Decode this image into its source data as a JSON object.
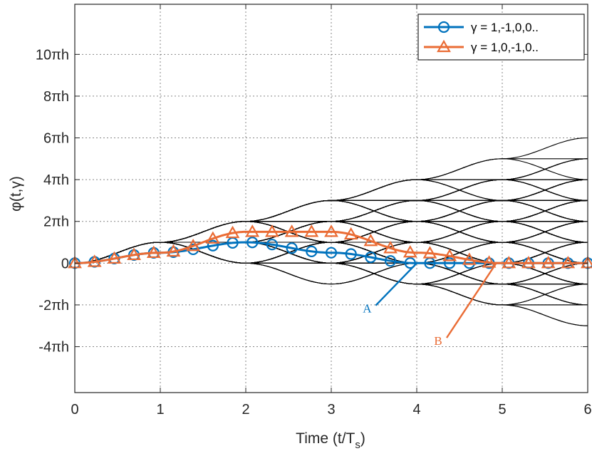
{
  "chart_data": {
    "type": "line",
    "xlabel": "Time (t/T",
    "xlabel_sub": "s",
    "xlabel_end": ")",
    "ylabel": "φ(t,γ)",
    "xlim": [
      0,
      6
    ],
    "ylim": [
      -6.2,
      12.4
    ],
    "grid": true,
    "x_ticks": [
      "0",
      "1",
      "2",
      "3",
      "4",
      "5",
      "6"
    ],
    "y_ticks": [
      {
        "value": 10,
        "label": "10πh"
      },
      {
        "value": 8,
        "label": "8πh"
      },
      {
        "value": 6,
        "label": "6πh"
      },
      {
        "value": 4,
        "label": "4πh"
      },
      {
        "value": 2,
        "label": "2πh"
      },
      {
        "value": 0,
        "label": "0"
      },
      {
        "value": -2,
        "label": "-2πh"
      },
      {
        "value": -4,
        "label": "-4πh"
      }
    ],
    "legend_position": "top-right",
    "phase_tree": {
      "color": "#000000",
      "slope_per_symbol": 1,
      "start_symbol": 2,
      "end_symbol": 6,
      "max_paths": 220
    },
    "series": [
      {
        "name": "γ = 1,-1,0,0..",
        "color": "#0072BD",
        "marker": "circle",
        "x": [
          0,
          1,
          2,
          3,
          4,
          5,
          6
        ],
        "y": [
          0,
          0.5,
          1,
          0.5,
          0,
          0,
          0
        ]
      },
      {
        "name": "γ = 1,0,-1,0..",
        "color": "#EA6C35",
        "marker": "triangle",
        "x": [
          0,
          1,
          2,
          3,
          4,
          5,
          6
        ],
        "y": [
          0,
          0.5,
          1.5,
          1.5,
          0.5,
          0,
          0
        ]
      }
    ],
    "annotations": [
      {
        "text": "A",
        "color": "#0072BD",
        "label_x": 3.42,
        "label_y": -2.3,
        "point_x": 4.0,
        "point_y": 0
      },
      {
        "text": "B",
        "color": "#EA6C35",
        "label_x": 4.25,
        "label_y": -3.85,
        "point_x": 4.93,
        "point_y": 0
      }
    ]
  }
}
